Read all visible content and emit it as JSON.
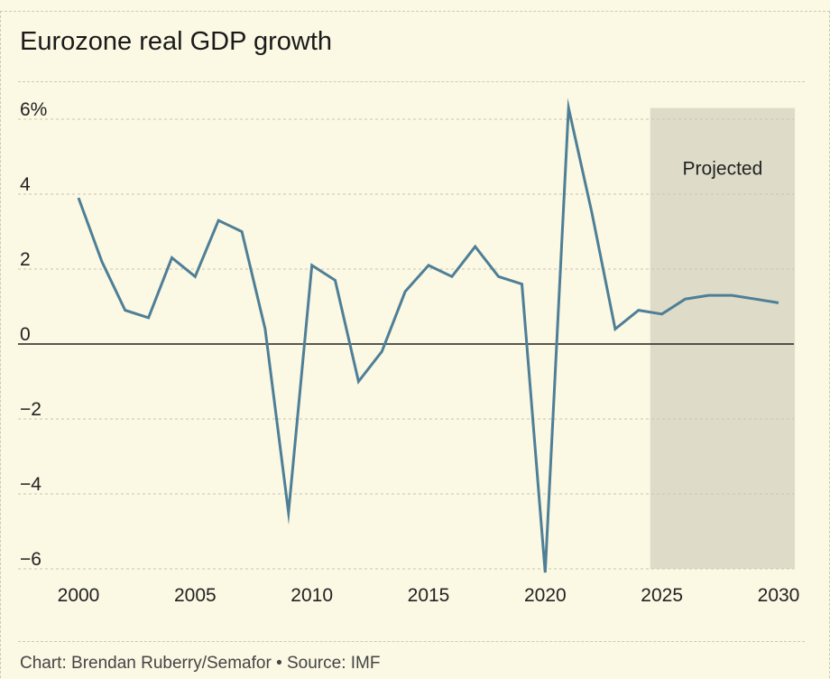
{
  "header": {
    "title": "Eurozone real GDP growth"
  },
  "footer": {
    "credit": "Chart: Brendan Ruberry/Semafor • Source: IMF"
  },
  "colors": {
    "background": "#fbf8e4",
    "line": "#4e7f96",
    "projection_band": "#dedcc9",
    "grid": "#c9c5ad",
    "zero_line": "#222222"
  },
  "chart_data": {
    "type": "line",
    "title": "Eurozone real GDP growth",
    "xlabel": "",
    "ylabel": "",
    "xlim": [
      2000,
      2030
    ],
    "ylim": [
      -6,
      6
    ],
    "grid": true,
    "x": [
      2000,
      2001,
      2002,
      2003,
      2004,
      2005,
      2006,
      2007,
      2008,
      2009,
      2010,
      2011,
      2012,
      2013,
      2014,
      2015,
      2016,
      2017,
      2018,
      2019,
      2020,
      2021,
      2022,
      2023,
      2024,
      2025,
      2026,
      2027,
      2028,
      2029,
      2030
    ],
    "series": [
      {
        "values": [
          3.9,
          2.2,
          0.9,
          0.7,
          2.3,
          1.8,
          3.3,
          3.0,
          0.4,
          -4.5,
          2.1,
          1.7,
          -1.0,
          -0.2,
          1.4,
          2.1,
          1.8,
          2.6,
          1.8,
          1.6,
          -6.1,
          6.3,
          3.5,
          0.4,
          0.9,
          0.8,
          1.2,
          1.3,
          1.3,
          1.2,
          1.1
        ]
      }
    ],
    "x_ticks": [
      "2000",
      "2005",
      "2010",
      "2015",
      "2020",
      "2025",
      "2030"
    ],
    "x_tick_values": [
      2000,
      2005,
      2010,
      2015,
      2020,
      2025,
      2030
    ],
    "y_ticks": [
      "6%",
      "4",
      "2",
      "0",
      "−2",
      "−4",
      "−6"
    ],
    "y_tick_values": [
      6,
      4,
      2,
      0,
      -2,
      -4,
      -6
    ],
    "projection": {
      "label": "Projected",
      "from": 2024.5,
      "to": 2030.7
    }
  }
}
